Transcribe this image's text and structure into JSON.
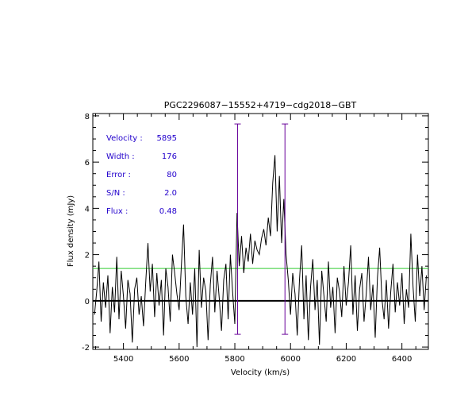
{
  "chart_data": {
    "type": "line",
    "title": "PGC2296087−15552+4719−cdg2018−GBT",
    "xlabel": "Velocity (km/s)",
    "ylabel": "Flux density (mJy)",
    "xlim": [
      5290,
      6495
    ],
    "ylim": [
      -2.1,
      8.1
    ],
    "xticks": [
      5400,
      5600,
      5800,
      6000,
      6200,
      6400
    ],
    "yticks": [
      -2,
      0,
      2,
      4,
      6,
      8
    ],
    "grid": false,
    "series": [
      {
        "color": "#000000",
        "x": [
          5296,
          5304,
          5312,
          5320,
          5328,
          5336,
          5344,
          5352,
          5360,
          5368,
          5376,
          5384,
          5392,
          5400,
          5408,
          5416,
          5424,
          5432,
          5440,
          5448,
          5456,
          5464,
          5472,
          5480,
          5488,
          5496,
          5504,
          5512,
          5520,
          5528,
          5536,
          5544,
          5552,
          5560,
          5568,
          5576,
          5584,
          5592,
          5600,
          5608,
          5616,
          5624,
          5632,
          5640,
          5648,
          5656,
          5664,
          5672,
          5680,
          5688,
          5696,
          5704,
          5712,
          5720,
          5728,
          5736,
          5744,
          5752,
          5760,
          5768,
          5776,
          5784,
          5792,
          5800,
          5808,
          5816,
          5824,
          5832,
          5840,
          5848,
          5856,
          5864,
          5872,
          5880,
          5888,
          5896,
          5904,
          5912,
          5920,
          5928,
          5936,
          5944,
          5952,
          5960,
          5968,
          5976,
          5984,
          5992,
          6000,
          6008,
          6016,
          6024,
          6032,
          6040,
          6048,
          6056,
          6064,
          6072,
          6080,
          6088,
          6096,
          6104,
          6112,
          6120,
          6128,
          6136,
          6144,
          6152,
          6160,
          6168,
          6176,
          6184,
          6192,
          6200,
          6208,
          6216,
          6224,
          6232,
          6240,
          6248,
          6256,
          6264,
          6272,
          6280,
          6288,
          6296,
          6304,
          6312,
          6320,
          6328,
          6336,
          6344,
          6352,
          6360,
          6368,
          6376,
          6384,
          6392,
          6400,
          6408,
          6416,
          6424,
          6432,
          6440,
          6448,
          6456,
          6464,
          6472,
          6480,
          6488
        ],
        "values": [
          -0.6,
          0.4,
          1.7,
          -0.9,
          0.8,
          -0.3,
          1.1,
          -1.4,
          0.6,
          -0.5,
          1.9,
          -0.8,
          1.3,
          0.2,
          -1.2,
          0.9,
          0.3,
          -1.8,
          0.5,
          1.0,
          -0.6,
          0.2,
          -1.1,
          0.8,
          2.5,
          0.4,
          1.6,
          -0.7,
          1.2,
          -0.2,
          0.9,
          -1.5,
          1.4,
          0.6,
          -0.9,
          2.0,
          1.2,
          0.3,
          -0.4,
          1.5,
          3.3,
          0.2,
          -1.0,
          0.8,
          -0.6,
          1.4,
          -2.0,
          2.2,
          -0.3,
          1.0,
          0.4,
          -1.7,
          0.7,
          1.9,
          -0.5,
          1.3,
          0.1,
          -1.3,
          0.9,
          1.6,
          -0.8,
          2.0,
          0.4,
          -1.0,
          3.8,
          1.5,
          2.8,
          1.2,
          2.3,
          1.7,
          2.9,
          1.6,
          2.6,
          2.2,
          2.0,
          2.7,
          3.1,
          2.4,
          3.6,
          2.8,
          5.1,
          6.3,
          3.0,
          5.4,
          2.5,
          4.4,
          2.0,
          0.9,
          -0.6,
          1.2,
          0.3,
          -1.5,
          0.9,
          2.4,
          -0.8,
          1.1,
          -1.7,
          0.6,
          1.8,
          -0.4,
          0.9,
          -1.9,
          1.3,
          0.2,
          -0.9,
          1.7,
          -0.3,
          0.6,
          -1.4,
          1.0,
          0.4,
          -0.7,
          1.5,
          -0.2,
          0.8,
          2.4,
          -0.6,
          1.1,
          -1.3,
          0.5,
          1.2,
          -0.9,
          0.3,
          1.9,
          -0.4,
          0.7,
          -1.6,
          1.0,
          2.3,
          0.1,
          -0.8,
          0.9,
          -1.2,
          0.4,
          1.6,
          -0.5,
          0.8,
          -0.2,
          1.2,
          -1.0,
          0.5,
          -0.3,
          2.9,
          0.6,
          -0.9,
          2.0,
          0.2,
          1.5,
          -0.4,
          1.1
        ]
      }
    ],
    "reference_lines": {
      "zero": {
        "y": 0,
        "color": "#000000"
      },
      "noise_level": {
        "y": 1.4,
        "color": "#33cc33"
      },
      "line_edges": {
        "x": [
          5810,
          5980
        ],
        "ylim": [
          -1.45,
          7.65
        ],
        "color": "#660099"
      }
    },
    "annotations": {
      "color": "#2200cc",
      "rows": [
        {
          "label": "Velocity :",
          "value": "5895"
        },
        {
          "label": "Width :",
          "value": "176"
        },
        {
          "label": "Error :",
          "value": "80"
        },
        {
          "label": "S/N :",
          "value": "2.0"
        },
        {
          "label": "Flux :",
          "value": "0.48"
        }
      ]
    }
  }
}
